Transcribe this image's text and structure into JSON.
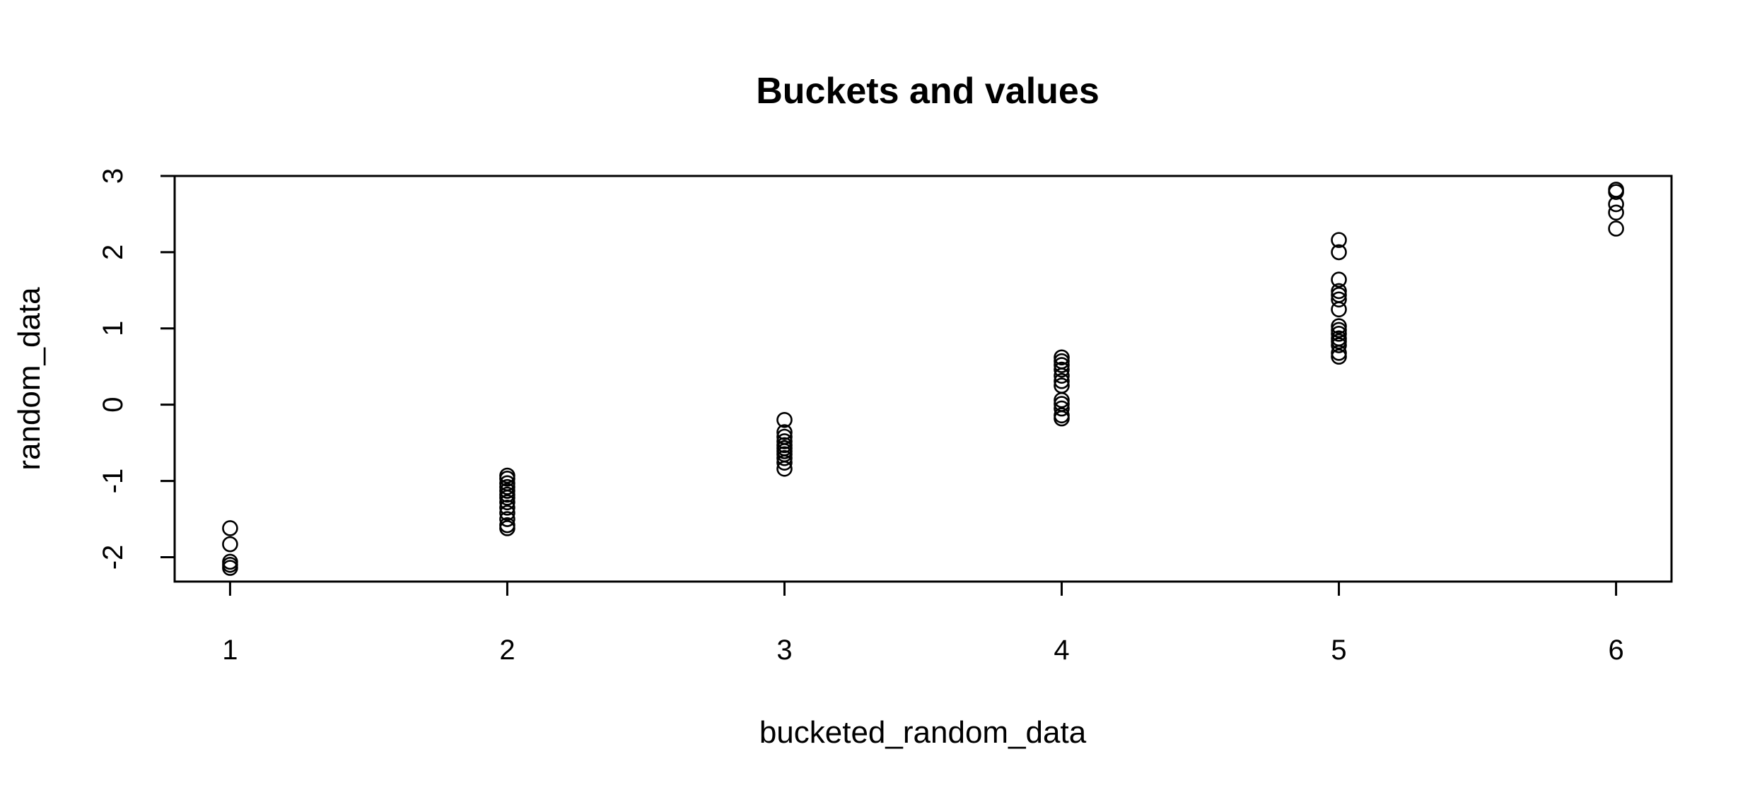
{
  "chart_data": {
    "type": "scatter",
    "title": "Buckets and values",
    "xlabel": "bucketed_random_data",
    "ylabel": "random_data",
    "xlim": [
      0.8,
      6.2
    ],
    "ylim": [
      -2.32,
      3.0
    ],
    "xticks": [
      1,
      2,
      3,
      4,
      5,
      6
    ],
    "yticks": [
      -2,
      -1,
      0,
      1,
      2,
      3
    ],
    "grid": false,
    "legend": "none",
    "point_color": "#000000",
    "series": [
      {
        "points": [
          {
            "x": 1,
            "y": -1.62
          },
          {
            "x": 1,
            "y": -1.83
          },
          {
            "x": 1,
            "y": -2.06
          },
          {
            "x": 1,
            "y": -2.1
          },
          {
            "x": 1,
            "y": -2.14
          },
          {
            "x": 2,
            "y": -0.93
          },
          {
            "x": 2,
            "y": -0.97
          },
          {
            "x": 2,
            "y": -1.03
          },
          {
            "x": 2,
            "y": -1.08
          },
          {
            "x": 2,
            "y": -1.13
          },
          {
            "x": 2,
            "y": -1.18
          },
          {
            "x": 2,
            "y": -1.22
          },
          {
            "x": 2,
            "y": -1.28
          },
          {
            "x": 2,
            "y": -1.35
          },
          {
            "x": 2,
            "y": -1.42
          },
          {
            "x": 2,
            "y": -1.5
          },
          {
            "x": 2,
            "y": -1.58
          },
          {
            "x": 2,
            "y": -1.62
          },
          {
            "x": 3,
            "y": -0.2
          },
          {
            "x": 3,
            "y": -0.36
          },
          {
            "x": 3,
            "y": -0.42
          },
          {
            "x": 3,
            "y": -0.48
          },
          {
            "x": 3,
            "y": -0.53
          },
          {
            "x": 3,
            "y": -0.57
          },
          {
            "x": 3,
            "y": -0.61
          },
          {
            "x": 3,
            "y": -0.65
          },
          {
            "x": 3,
            "y": -0.7
          },
          {
            "x": 3,
            "y": -0.76
          },
          {
            "x": 3,
            "y": -0.84
          },
          {
            "x": 4,
            "y": 0.62
          },
          {
            "x": 4,
            "y": 0.57
          },
          {
            "x": 4,
            "y": 0.52
          },
          {
            "x": 4,
            "y": 0.46
          },
          {
            "x": 4,
            "y": 0.38
          },
          {
            "x": 4,
            "y": 0.31
          },
          {
            "x": 4,
            "y": 0.25
          },
          {
            "x": 4,
            "y": 0.06
          },
          {
            "x": 4,
            "y": 0.01
          },
          {
            "x": 4,
            "y": -0.05
          },
          {
            "x": 4,
            "y": -0.14
          },
          {
            "x": 4,
            "y": -0.18
          },
          {
            "x": 5,
            "y": 2.16
          },
          {
            "x": 5,
            "y": 2.0
          },
          {
            "x": 5,
            "y": 1.64
          },
          {
            "x": 5,
            "y": 1.49
          },
          {
            "x": 5,
            "y": 1.44
          },
          {
            "x": 5,
            "y": 1.38
          },
          {
            "x": 5,
            "y": 1.25
          },
          {
            "x": 5,
            "y": 1.03
          },
          {
            "x": 5,
            "y": 0.98
          },
          {
            "x": 5,
            "y": 0.93
          },
          {
            "x": 5,
            "y": 0.87
          },
          {
            "x": 5,
            "y": 0.83
          },
          {
            "x": 5,
            "y": 0.78
          },
          {
            "x": 5,
            "y": 0.68
          },
          {
            "x": 5,
            "y": 0.63
          },
          {
            "x": 6,
            "y": 2.82
          },
          {
            "x": 6,
            "y": 2.79
          },
          {
            "x": 6,
            "y": 2.63
          },
          {
            "x": 6,
            "y": 2.52
          },
          {
            "x": 6,
            "y": 2.31
          }
        ]
      }
    ]
  }
}
